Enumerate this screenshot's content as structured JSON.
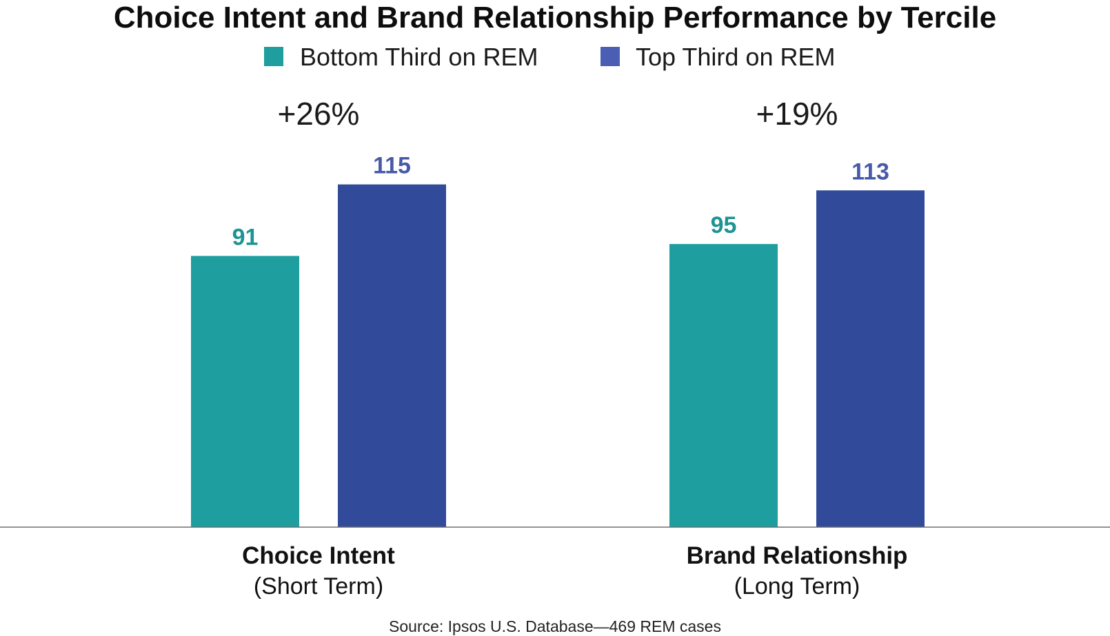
{
  "chart_data": {
    "type": "bar",
    "title": "Choice Intent and Brand Relationship Performance by Tercile",
    "categories": [
      {
        "name": "Choice Intent",
        "sub": "(Short Term)",
        "change": "+26%"
      },
      {
        "name": "Brand Relationship",
        "sub": "(Long Term)",
        "change": "+19%"
      }
    ],
    "series": [
      {
        "name": "Bottom Third on REM",
        "color": "#1e9e9e",
        "label_color": "#1e9393",
        "values": [
          91,
          95
        ]
      },
      {
        "name": "Top Third on REM",
        "color": "#324a9a",
        "label_color": "#4759a8",
        "values": [
          115,
          113
        ]
      }
    ],
    "ylim": [
      0,
      120
    ],
    "grid": false,
    "legend_position": "top-center",
    "xlabel": "",
    "ylabel": "",
    "source": "Source: Ipsos U.S. Database—469 REM cases"
  }
}
